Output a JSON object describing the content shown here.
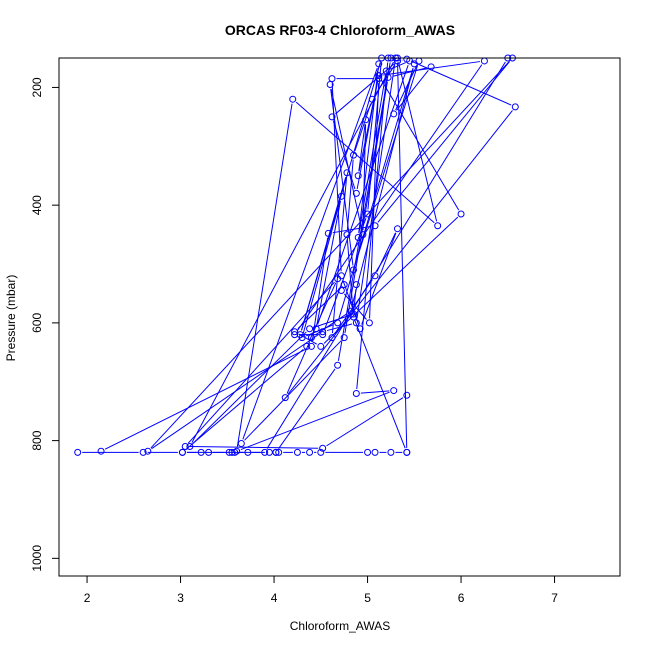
{
  "chart_data": {
    "type": "line",
    "title": "ORCAS RF03-4 Chloroform_AWAS",
    "xlabel": "Chloroform_AWAS",
    "ylabel": "Pressure (mbar)",
    "xlim": [
      1.7,
      7.7
    ],
    "ylim": [
      1030,
      150
    ],
    "y_reversed": true,
    "grid": false,
    "series_color": "#0000ff",
    "x_ticks": [
      2,
      3,
      4,
      5,
      6,
      7
    ],
    "y_ticks": [
      200,
      400,
      600,
      800,
      1000
    ],
    "series": [
      {
        "x": [
          5.42,
          4.85,
          4.78,
          4.85,
          5.05,
          5.32,
          4.62,
          4.88,
          5.12,
          6.0,
          4.5,
          4.22,
          4.75,
          4.72,
          5.02,
          5.12,
          4.62,
          4.72,
          4.92,
          5.32,
          5.08,
          4.62,
          4.78,
          4.28,
          5.15,
          5.0,
          4.52,
          4.22,
          6.25,
          5.12,
          4.9,
          4.98,
          4.95,
          4.6,
          4.85,
          5.55,
          5.28,
          5.68,
          5.22,
          4.75,
          3.65,
          5.12,
          4.9,
          5.2,
          5.45,
          4.45,
          4.72,
          4.3,
          4.68,
          5.5,
          4.82,
          4.4,
          4.12,
          6.58,
          5.42,
          5.32,
          5.25,
          4.68,
          4.02
        ],
        "y": [
          820,
          590,
          450,
          315,
          220,
          155,
          250,
          380,
          180,
          415,
          640,
          615,
          535,
          545,
          600,
          185,
          185,
          520,
          610,
          440,
          520,
          625,
          345,
          620,
          150,
          415,
          620,
          620,
          155,
          180,
          350,
          255,
          450,
          195,
          510,
          155,
          245,
          165,
          183,
          625,
          805,
          160,
          455,
          172,
          155,
          610,
          385,
          625,
          600,
          160,
          580,
          625,
          727,
          233,
          152,
          155,
          150,
          672,
          820
        ]
      },
      {
        "x": [
          1.9,
          2.6,
          3.02,
          3.22,
          3.3,
          3.52,
          3.55,
          3.58,
          3.72,
          3.95,
          4.02,
          4.05,
          4.25,
          4.38,
          4.5,
          5.0,
          5.08,
          5.25,
          5.42,
          5.32,
          5.75,
          4.2,
          3.6,
          5.28,
          4.88,
          5.22,
          6.5,
          3.9,
          3.02,
          4.35,
          4.68,
          3.05,
          4.52,
          5.42
        ],
        "y": [
          820,
          820,
          820,
          820,
          820,
          820,
          820,
          820,
          820,
          820,
          820,
          820,
          820,
          820,
          820,
          820,
          820,
          820,
          820,
          150,
          435,
          220,
          818,
          715,
          720,
          150,
          150,
          820,
          820,
          640,
          525,
          810,
          813,
          723
        ]
      },
      {
        "x": [
          2.15,
          4.4,
          4.58,
          5.08,
          6.55,
          2.65,
          4.52,
          4.88,
          5.3,
          3.1,
          4.38,
          4.85,
          4.88
        ],
        "y": [
          818,
          640,
          448,
          435,
          150,
          818,
          615,
          600,
          150,
          810,
          610,
          585,
          535
        ]
      }
    ]
  }
}
